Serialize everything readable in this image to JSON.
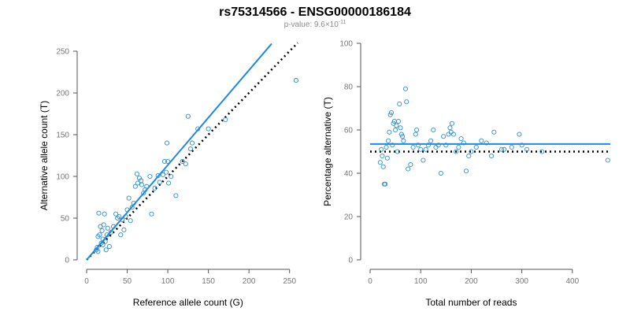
{
  "header": {
    "title": "rs75314566 - ENSG00000186184",
    "pvalue_prefix": "p-value: 9.6×10",
    "pvalue_exponent": "-11"
  },
  "colors": {
    "points": "#2a8fd6",
    "fit_line": "#1e88e5",
    "reference_line": "#000000",
    "axis": "#555555",
    "tick_text": "#777777"
  },
  "chart_data": [
    {
      "type": "scatter",
      "xlabel": "Reference allele count (G)",
      "ylabel": "Alternative allele count (T)",
      "xlim": [
        0,
        260
      ],
      "ylim": [
        0,
        250
      ],
      "xticks": [
        0,
        50,
        100,
        150,
        200,
        250
      ],
      "yticks": [
        0,
        50,
        100,
        150,
        200,
        250
      ],
      "grid": false,
      "points": [
        [
          12,
          12
        ],
        [
          13,
          15
        ],
        [
          14,
          10
        ],
        [
          14,
          28
        ],
        [
          15,
          56
        ],
        [
          16,
          30
        ],
        [
          17,
          40
        ],
        [
          18,
          20
        ],
        [
          19,
          35
        ],
        [
          20,
          25
        ],
        [
          20,
          18
        ],
        [
          21,
          42
        ],
        [
          22,
          55
        ],
        [
          23,
          22
        ],
        [
          24,
          12
        ],
        [
          25,
          30
        ],
        [
          26,
          38
        ],
        [
          28,
          16
        ],
        [
          30,
          33
        ],
        [
          33,
          40
        ],
        [
          36,
          55
        ],
        [
          38,
          50
        ],
        [
          40,
          52
        ],
        [
          42,
          30
        ],
        [
          44,
          48
        ],
        [
          46,
          36
        ],
        [
          48,
          52
        ],
        [
          50,
          60
        ],
        [
          52,
          74
        ],
        [
          54,
          47
        ],
        [
          56,
          63
        ],
        [
          58,
          68
        ],
        [
          60,
          88
        ],
        [
          62,
          103
        ],
        [
          63,
          92
        ],
        [
          65,
          98
        ],
        [
          67,
          95
        ],
        [
          68,
          90
        ],
        [
          70,
          80
        ],
        [
          72,
          84
        ],
        [
          74,
          88
        ],
        [
          78,
          100
        ],
        [
          80,
          55
        ],
        [
          84,
          86
        ],
        [
          88,
          101
        ],
        [
          90,
          93
        ],
        [
          94,
          102
        ],
        [
          96,
          118
        ],
        [
          98,
          105
        ],
        [
          99,
          140
        ],
        [
          100,
          118
        ],
        [
          101,
          92
        ],
        [
          104,
          100
        ],
        [
          110,
          77
        ],
        [
          118,
          118
        ],
        [
          122,
          115
        ],
        [
          125,
          172
        ],
        [
          128,
          133
        ],
        [
          130,
          140
        ],
        [
          137,
          157
        ],
        [
          150,
          157
        ],
        [
          171,
          168
        ],
        [
          258,
          215
        ]
      ],
      "lines": [
        {
          "name": "",
          "style": "solid",
          "x": [
            0,
            228
          ],
          "y": [
            0,
            259
          ]
        },
        {
          "name": "",
          "style": "dotted",
          "x": [
            0,
            260
          ],
          "y": [
            0,
            260
          ]
        }
      ]
    },
    {
      "type": "scatter",
      "xlabel": "Total number of reads",
      "ylabel": "Percentage alternative (T)",
      "xlim": [
        0,
        475
      ],
      "ylim": [
        0,
        100
      ],
      "xticks": [
        0,
        100,
        200,
        300,
        400
      ],
      "yticks": [
        0,
        20,
        40,
        60,
        80,
        100
      ],
      "grid": false,
      "points": [
        [
          20,
          45
        ],
        [
          22,
          51
        ],
        [
          24,
          48
        ],
        [
          26,
          43
        ],
        [
          28,
          35
        ],
        [
          30,
          35
        ],
        [
          32,
          52
        ],
        [
          34,
          47
        ],
        [
          36,
          55
        ],
        [
          38,
          59
        ],
        [
          40,
          67
        ],
        [
          42,
          68
        ],
        [
          44,
          53
        ],
        [
          46,
          63
        ],
        [
          48,
          64
        ],
        [
          50,
          60
        ],
        [
          52,
          62
        ],
        [
          54,
          50
        ],
        [
          56,
          64
        ],
        [
          58,
          72
        ],
        [
          60,
          61
        ],
        [
          62,
          58
        ],
        [
          64,
          57
        ],
        [
          66,
          55
        ],
        [
          70,
          79
        ],
        [
          72,
          73
        ],
        [
          75,
          42
        ],
        [
          80,
          44
        ],
        [
          85,
          52
        ],
        [
          90,
          58
        ],
        [
          92,
          60
        ],
        [
          95,
          53
        ],
        [
          100,
          51
        ],
        [
          105,
          46
        ],
        [
          110,
          51
        ],
        [
          115,
          53
        ],
        [
          120,
          55
        ],
        [
          125,
          60
        ],
        [
          130,
          52
        ],
        [
          135,
          53
        ],
        [
          140,
          40
        ],
        [
          145,
          57
        ],
        [
          150,
          53
        ],
        [
          155,
          58
        ],
        [
          158,
          61
        ],
        [
          160,
          59
        ],
        [
          162,
          63
        ],
        [
          165,
          58
        ],
        [
          170,
          50
        ],
        [
          175,
          52
        ],
        [
          180,
          56
        ],
        [
          185,
          54
        ],
        [
          190,
          41
        ],
        [
          195,
          48
        ],
        [
          200,
          50
        ],
        [
          210,
          52
        ],
        [
          220,
          55
        ],
        [
          230,
          54
        ],
        [
          240,
          48
        ],
        [
          245,
          59
        ],
        [
          260,
          51
        ],
        [
          265,
          51
        ],
        [
          280,
          52
        ],
        [
          295,
          58
        ],
        [
          300,
          53
        ],
        [
          310,
          51
        ],
        [
          340,
          50
        ],
        [
          470,
          46
        ]
      ],
      "lines": [
        {
          "name": "",
          "style": "solid",
          "x": [
            0,
            475
          ],
          "y": [
            53.5,
            53.5
          ]
        },
        {
          "name": "",
          "style": "dotted",
          "x": [
            0,
            475
          ],
          "y": [
            50,
            50
          ]
        }
      ]
    }
  ]
}
